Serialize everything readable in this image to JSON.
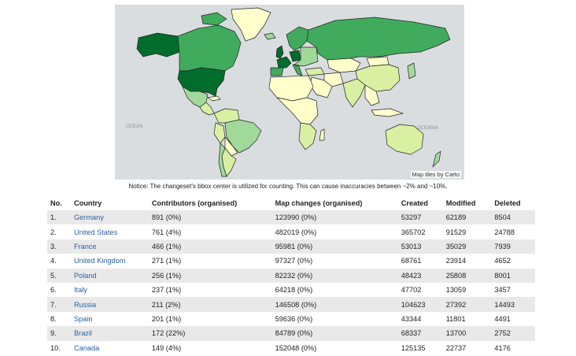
{
  "map": {
    "attribution": "Map tiles by Carto",
    "ocean_labels": [
      "OCEAN",
      "OCEANIA"
    ],
    "colors": {
      "water": "#d9dde0",
      "level_1": "#ffffcc",
      "level_2": "#d9f0a3",
      "level_3": "#a1d99b",
      "level_4": "#41ab5d",
      "level_5": "#006d2c"
    }
  },
  "notice": "Notice: The changeset's bbox center is utilized for counting. This can cause inaccuracies between ~2% and ~10%.",
  "table": {
    "headers": {
      "no": "No.",
      "country": "Country",
      "contributors": "Contributors (organised)",
      "changes": "Map changes (organised)",
      "created": "Created",
      "modified": "Modified",
      "deleted": "Deleted"
    },
    "rows": [
      {
        "no": "1.",
        "country": "Germany",
        "contributors": "891 (0%)",
        "changes": "123990 (0%)",
        "created": "53297",
        "modified": "62189",
        "deleted": "8504"
      },
      {
        "no": "2.",
        "country": "United States",
        "contributors": "761 (4%)",
        "changes": "482019 (0%)",
        "created": "365702",
        "modified": "91529",
        "deleted": "24788"
      },
      {
        "no": "3.",
        "country": "France",
        "contributors": "466 (1%)",
        "changes": "95981 (0%)",
        "created": "53013",
        "modified": "35029",
        "deleted": "7939"
      },
      {
        "no": "4.",
        "country": "United Kingdom",
        "contributors": "271 (1%)",
        "changes": "97327 (0%)",
        "created": "68761",
        "modified": "23914",
        "deleted": "4652"
      },
      {
        "no": "5.",
        "country": "Poland",
        "contributors": "256 (1%)",
        "changes": "82232 (0%)",
        "created": "48423",
        "modified": "25808",
        "deleted": "8001"
      },
      {
        "no": "6.",
        "country": "Italy",
        "contributors": "237 (1%)",
        "changes": "64218 (0%)",
        "created": "47702",
        "modified": "13059",
        "deleted": "3457"
      },
      {
        "no": "7.",
        "country": "Russia",
        "contributors": "211 (2%)",
        "changes": "146508 (0%)",
        "created": "104623",
        "modified": "27392",
        "deleted": "14493"
      },
      {
        "no": "8.",
        "country": "Spain",
        "contributors": "201 (1%)",
        "changes": "59636 (0%)",
        "created": "43344",
        "modified": "11801",
        "deleted": "4491"
      },
      {
        "no": "9.",
        "country": "Brazil",
        "contributors": "172 (22%)",
        "changes": "84789 (0%)",
        "created": "68337",
        "modified": "13700",
        "deleted": "2752"
      },
      {
        "no": "10.",
        "country": "Canada",
        "contributors": "149 (4%)",
        "changes": "152048 (0%)",
        "created": "125135",
        "modified": "22737",
        "deleted": "4176"
      }
    ]
  }
}
